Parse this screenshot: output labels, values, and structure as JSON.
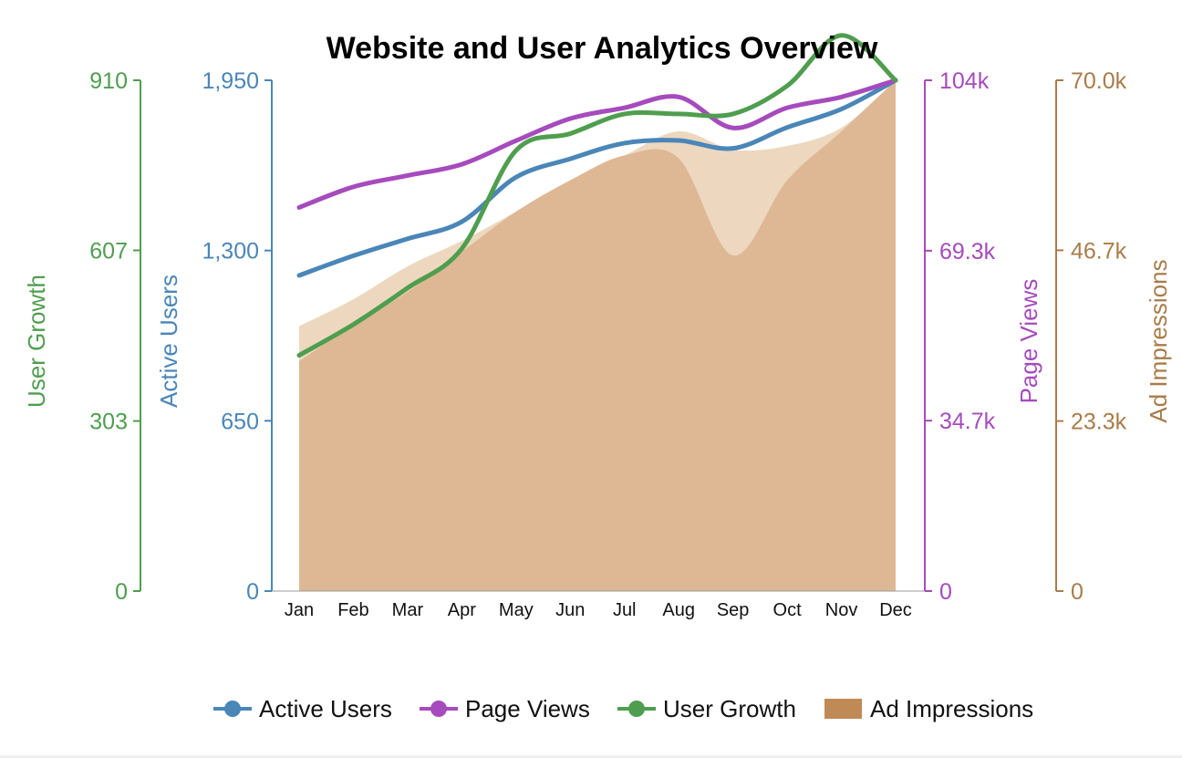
{
  "chart_data": {
    "type": "line",
    "title": "Website and User Analytics Overview",
    "categories": [
      "Jan",
      "Feb",
      "Mar",
      "Apr",
      "May",
      "Jun",
      "Jul",
      "Aug",
      "Sep",
      "Oct",
      "Nov",
      "Dec"
    ],
    "series": [
      {
        "name": "Active Users",
        "axis": "active_users",
        "kind": "line",
        "color": "#4a86b8",
        "values": [
          1205,
          1280,
          1345,
          1410,
          1580,
          1650,
          1710,
          1720,
          1690,
          1770,
          1840,
          1950
        ]
      },
      {
        "name": "Page Views",
        "axis": "page_views",
        "kind": "line",
        "color": "#a64bbd",
        "values": [
          78100,
          82300,
          84600,
          86900,
          91700,
          96200,
          98400,
          100600,
          94300,
          98400,
          100600,
          104000
        ]
      },
      {
        "name": "User Growth",
        "axis": "user_growth",
        "kind": "line",
        "color": "#4f9e4f",
        "values": [
          420,
          475,
          540,
          610,
          785,
          815,
          850,
          850,
          850,
          900,
          990,
          910
        ]
      },
      {
        "name": "Ad Impressions",
        "axis": "ad_impressions",
        "kind": "area",
        "color": "#c08a57",
        "values": [
          31500,
          36500,
          41000,
          46500,
          52000,
          56300,
          59700,
          59300,
          46000,
          56300,
          63000,
          70000
        ],
        "upper_band": [
          36300,
          40000,
          44500,
          48000,
          52000,
          56300,
          59700,
          63000,
          60500,
          61000,
          63500,
          70000
        ]
      }
    ],
    "axes": {
      "user_growth": {
        "label": "User Growth",
        "range": [
          0,
          910
        ],
        "ticks": [
          0,
          303,
          607,
          910
        ],
        "tick_labels": [
          "0",
          "303",
          "607",
          "910"
        ],
        "color": "#4f9e4f",
        "side": "left"
      },
      "active_users": {
        "label": "Active Users",
        "range": [
          0,
          1950
        ],
        "ticks": [
          0,
          650,
          1300,
          1950
        ],
        "tick_labels": [
          "0",
          "650",
          "1,300",
          "1,950"
        ],
        "color": "#4a86b8",
        "side": "left"
      },
      "page_views": {
        "label": "Page Views",
        "range": [
          0,
          104000
        ],
        "ticks": [
          0,
          34700,
          69300,
          104000
        ],
        "tick_labels": [
          "0",
          "34.7k",
          "69.3k",
          "104k"
        ],
        "color": "#a64bbd",
        "side": "right"
      },
      "ad_impressions": {
        "label": "Ad Impressions",
        "range": [
          0,
          70000
        ],
        "ticks": [
          0,
          23300,
          46700,
          70000
        ],
        "tick_labels": [
          "0",
          "23.3k",
          "46.7k",
          "70.0k"
        ],
        "color": "#a97c4a",
        "side": "right"
      }
    },
    "grid": false,
    "legend": {
      "position": "bottom-center"
    }
  }
}
